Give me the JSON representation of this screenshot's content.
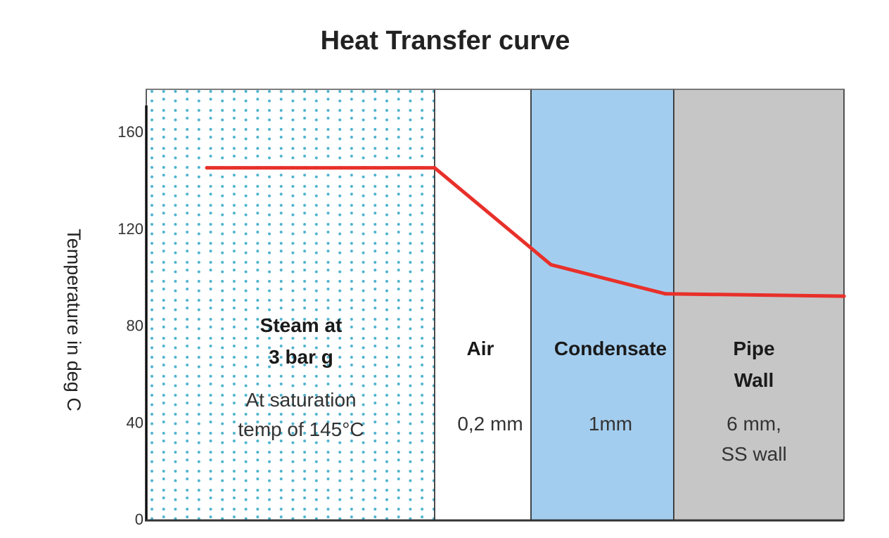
{
  "chart_data": {
    "type": "line",
    "title": "Heat Transfer curve",
    "xlabel": "",
    "ylabel": "Temperature in deg C",
    "ylim": [
      0,
      177
    ],
    "yticks": [
      0,
      40,
      80,
      120,
      160
    ],
    "grid": false,
    "layers": [
      {
        "name": "Steam",
        "label_lines": [
          "Steam at",
          "3 bar g"
        ],
        "detail_lines": [
          "At saturation",
          "temp of 145°C"
        ],
        "fill": "dotted",
        "color": "#4fb3cf"
      },
      {
        "name": "Air",
        "label_lines": [
          "Air"
        ],
        "detail_lines": [
          "0,2 mm"
        ],
        "fill": "solid",
        "color": "#ffffff"
      },
      {
        "name": "Condensate",
        "label_lines": [
          "Condensate"
        ],
        "detail_lines": [
          "1mm"
        ],
        "fill": "solid",
        "color": "#a3cdee"
      },
      {
        "name": "Pipe Wall",
        "label_lines": [
          "Pipe",
          "Wall"
        ],
        "detail_lines": [
          "6 mm,",
          "SS wall"
        ],
        "fill": "solid",
        "color": "#c6c6c6"
      }
    ],
    "series": [
      {
        "color": "#e8302a",
        "points": [
          {
            "layer_pos": 0.21,
            "y": 145
          },
          {
            "layer_pos": 1.0,
            "y": 145
          },
          {
            "layer_pos": 2.14,
            "y": 105
          },
          {
            "layer_pos": 2.94,
            "y": 93
          },
          {
            "layer_pos": 4.0,
            "y": 92
          }
        ]
      }
    ]
  }
}
